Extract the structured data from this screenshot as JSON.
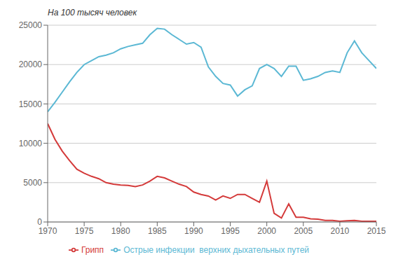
{
  "chart_data": {
    "type": "line",
    "ylabel": "На 100 тысяч человек",
    "x": [
      1970,
      1971,
      1972,
      1973,
      1974,
      1975,
      1976,
      1977,
      1978,
      1979,
      1980,
      1981,
      1982,
      1983,
      1984,
      1985,
      1986,
      1987,
      1988,
      1989,
      1990,
      1991,
      1992,
      1993,
      1994,
      1995,
      1996,
      1997,
      1998,
      1999,
      2000,
      2001,
      2002,
      2003,
      2004,
      2005,
      2006,
      2007,
      2008,
      2009,
      2010,
      2011,
      2012,
      2013,
      2014,
      2015
    ],
    "series": [
      {
        "name": "Острые инфекции  верхних дыхательных путей",
        "color": "#5bb8d4",
        "values": [
          14000,
          15200,
          16500,
          17800,
          19000,
          20000,
          20500,
          21000,
          21200,
          21500,
          22000,
          22300,
          22500,
          22700,
          23800,
          24600,
          24500,
          23800,
          23200,
          22600,
          22800,
          22200,
          19700,
          18500,
          17600,
          17400,
          16000,
          16800,
          17300,
          19500,
          20000,
          19500,
          18500,
          19800,
          19800,
          18000,
          18200,
          18500,
          19000,
          19200,
          19000,
          21500,
          23000,
          21500,
          20500,
          19500
        ]
      },
      {
        "name": "Грипп",
        "color": "#d43a3a",
        "values": [
          12500,
          10500,
          9000,
          7800,
          6700,
          6200,
          5800,
          5500,
          5000,
          4800,
          4700,
          4650,
          4500,
          4700,
          5200,
          5800,
          5600,
          5200,
          4800,
          4500,
          3800,
          3500,
          3300,
          2800,
          3300,
          3000,
          3500,
          3500,
          3000,
          2500,
          5200,
          1100,
          500,
          2300,
          600,
          600,
          400,
          350,
          200,
          200,
          100,
          150,
          200,
          100,
          100,
          100
        ]
      }
    ],
    "xlim": [
      1970,
      2015
    ],
    "xticks": [
      1970,
      1975,
      1980,
      1985,
      1990,
      1995,
      2000,
      2005,
      2010,
      2015
    ],
    "ylim": [
      0,
      25000
    ],
    "yticks": [
      0,
      5000,
      10000,
      15000,
      20000,
      25000
    ],
    "grid": true,
    "legend": "bottom"
  }
}
